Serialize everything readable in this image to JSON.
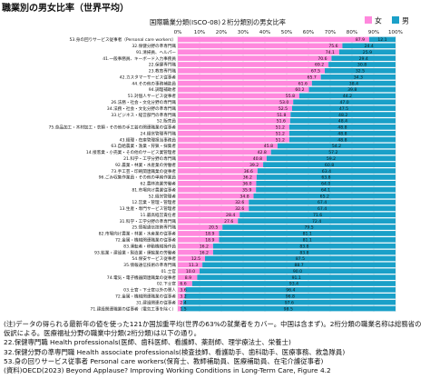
{
  "page_title": "職業別の男女比率（世界平均）",
  "chart_data": {
    "type": "bar",
    "stacked": "percent",
    "orientation": "horizontal",
    "title": "国際職業分類(ISCO-08)２桁分類別の男女比率",
    "x_ticks": [
      "0%",
      "10%",
      "20%",
      "30%",
      "40%",
      "50%",
      "60%",
      "70%",
      "80%",
      "90%",
      "100%"
    ],
    "xlim": [
      0,
      100
    ],
    "legend": [
      {
        "name": "女",
        "color": "#ff88dd"
      },
      {
        "name": "男",
        "color": "#1aa0c8"
      }
    ],
    "series_colors": {
      "female": "#ff88dd",
      "male": "#1aa0c8"
    },
    "grid": true,
    "categories": [
      "53.身の回りサービス従事者（Personal care workers）",
      "32.保健分野の準専門職",
      "91.清掃員、ヘルパー",
      "41.一般事務員、キーボード入力事務員",
      "22.保健専門職",
      "23.教育専門職",
      "42.カスタマーサービス従事者",
      "44.その他の事務補助員",
      "94.調理補助者",
      "51.対個人サービス従事者",
      "26.法務・社会・文化分野の専門職",
      "34.法務・社会・文化分野の準専門職",
      "33.ビジネス・経営部門の準専門職",
      "52.販売員",
      "75.食品加工・木材加工・衣類・その他の手工芸の関連職業の従事者",
      "24.経営管理専門職",
      "43.経理・在庫管理担当事務員",
      "63.自給農業・漁業・狩猟・採集者",
      "14.接客業・小売業・その他のサービス業管理者",
      "21.科学・工学分野の専門職",
      "92.農業・林業・水産業の労働者",
      "73.手工芸・印刷関連職業の従事者",
      "96.ごみ収集作業員・その他の単純作業員",
      "62.農林漁業労働者",
      "81.市場向け農業従事者",
      "52.経営管理者",
      "12.営業・管理・管理者",
      "13.生産・専門サービス管理者",
      "11.最高経営責任者",
      "31.科学・工学分野の準専門職",
      "25.情報通信技術専門職",
      "82.市場向け農業・林業・水産業の従事者",
      "72.金属・機械関連職業の従事者",
      "83.運転者・移動機械操作員",
      "93.鉱業・建設業・製造業・運輸業の労働者",
      "54.保安サービス従事者",
      "35.情報通信技術の準専門職",
      "01.士官",
      "74.電気・電子機器関連職業の従事者",
      "02.下士官",
      "03.士官・下士官以外の軍人",
      "72.金属・機械関連職業の従事者",
      "31.建設関連の従事者",
      "71.建設関連職業の従事者（電気工事を除く）"
    ],
    "female_values": [
      87.9,
      75.6,
      74.1,
      70.6,
      69.2,
      67.5,
      65.7,
      61.6,
      60.2,
      55.8,
      53.0,
      52.5,
      51.8,
      51.6,
      51.2,
      51.2,
      51.2,
      45.8,
      42.8,
      40.8,
      39.2,
      36.6,
      36.2,
      36.0,
      35.9,
      34.8,
      32.6,
      32.6,
      28.4,
      27.6,
      20.5,
      18.9,
      18.9,
      16.2,
      16.2,
      12.5,
      11.3,
      10.0,
      8.9,
      6.6,
      3.6,
      3.2,
      2.4,
      1.5
    ],
    "male_values": [
      12.1,
      24.4,
      25.9,
      29.4,
      30.8,
      32.5,
      34.3,
      38.4,
      39.8,
      44.2,
      47.0,
      47.5,
      48.2,
      48.4,
      48.8,
      48.8,
      48.8,
      54.2,
      57.2,
      59.2,
      60.8,
      63.4,
      63.8,
      64.0,
      64.1,
      65.2,
      67.4,
      67.4,
      71.6,
      72.4,
      79.5,
      81.1,
      81.1,
      83.8,
      83.8,
      87.5,
      88.7,
      90.0,
      91.1,
      93.4,
      96.4,
      96.8,
      97.6,
      98.5
    ]
  },
  "notes": [
    "(注)データの得られる最新年の値を使った121か国加重平均(世界の63%の就業者をカバー。中国は含まず)。2桁分類の職業名称は総務省の",
    "仮訳による。医療福祉分野の職業中分類(2桁分類)は以下の通り。",
    "22.保健専門職 Health professionals(医師、歯科医師、看護師、薬剤師、理学療法士、栄養士)",
    "32.保健分野の準専門職 Health associate professionals(検査技師、看護助手、歯科助手、医療事務、救急隊員)",
    "53.身の回りサービス従事者 Personal care workers(保育士、教師補助員、医療補助員、在宅介護従事者)",
    "(資料)OECD(2023) Beyond Applause? Improving Working Conditions in Long-Term Care, Figure 4.2"
  ]
}
